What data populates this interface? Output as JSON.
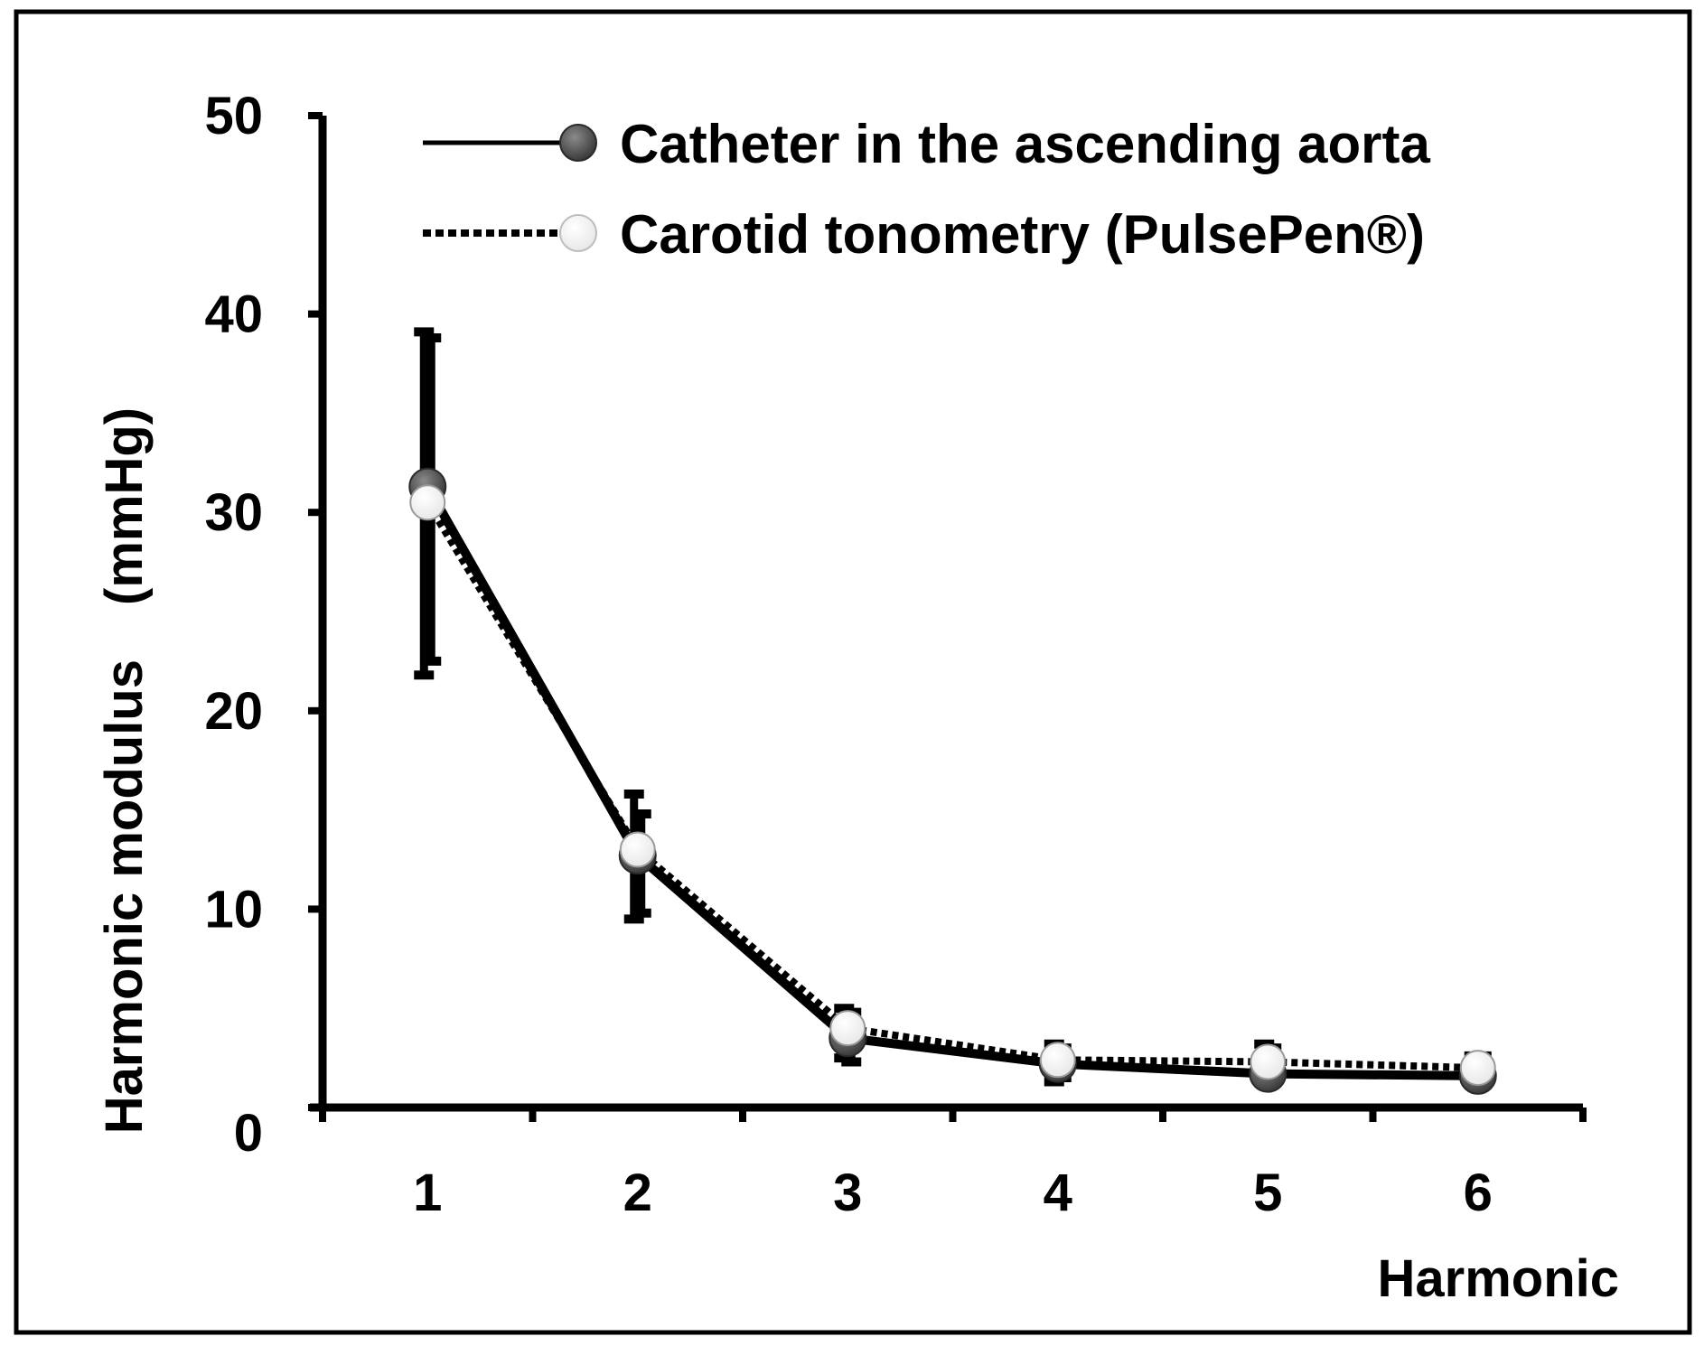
{
  "chart_data": {
    "type": "line",
    "title": "",
    "xlabel": "Harmonic",
    "ylabel": "Harmonic modulus",
    "ylabel_unit": "(mmHg)",
    "x": [
      1,
      2,
      3,
      4,
      5,
      6
    ],
    "xticks": [
      "1",
      "2",
      "3",
      "4",
      "5",
      "6"
    ],
    "xlim": [
      0.5,
      6.5
    ],
    "ylim": [
      0,
      50
    ],
    "yticks": [
      "0",
      "10",
      "20",
      "30",
      "40",
      "50"
    ],
    "grid": false,
    "legend_position": "top",
    "series": [
      {
        "name": "Catheter in the ascending aorta",
        "line_style": "solid",
        "marker_color": "#3a3a3a",
        "values": [
          31.3,
          12.7,
          3.5,
          2.2,
          1.7,
          1.6
        ],
        "err_upper": [
          39.1,
          15.8,
          5.0,
          3.2,
          3.2,
          2.6
        ],
        "err_lower": [
          21.8,
          9.5,
          2.5,
          1.3,
          1.5,
          1.2
        ]
      },
      {
        "name": "Carotid tonometry (PulsePen®)",
        "line_style": "dotted",
        "marker_color": "#e8e8e8",
        "values": [
          30.5,
          13.0,
          4.0,
          2.4,
          2.3,
          2.0
        ],
        "err_upper": [
          38.8,
          14.8,
          4.8,
          3.0,
          3.0,
          2.6
        ],
        "err_lower": [
          22.5,
          9.8,
          2.3,
          1.5,
          1.6,
          1.3
        ]
      }
    ]
  }
}
